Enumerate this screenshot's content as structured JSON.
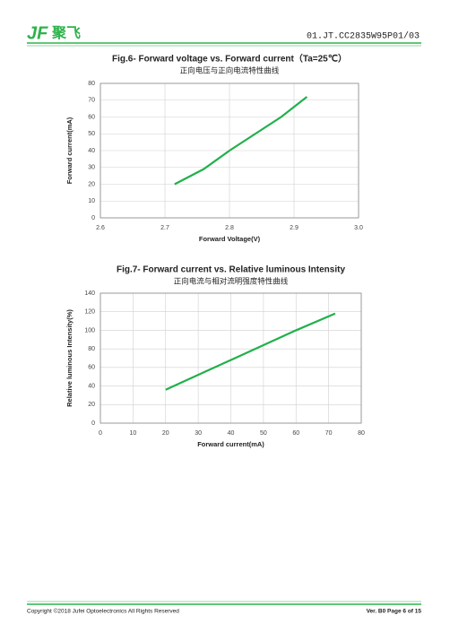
{
  "header": {
    "logo": "JF",
    "logo_cn": "聚飞",
    "doc_number": "01.JT.CC2835W95P01/03"
  },
  "footer": {
    "copyright": "Copyright ©2018 Jufei Optoelectronics All Rights Reserved",
    "page": "Ver. B0 Page 6 of 15"
  },
  "chart_data": [
    {
      "type": "line",
      "title": "Fig.6- Forward voltage vs. Forward current（Ta=25℃）",
      "subtitle": "正向电压与正向电流特性曲线",
      "x_label": "Forward Voltage(V)",
      "y_label": "Forward current(mA)",
      "x": [
        2.715,
        2.76,
        2.8,
        2.84,
        2.88,
        2.92
      ],
      "series": [
        {
          "color": "#22b04b",
          "values": [
            20,
            29,
            40,
            50,
            60,
            72
          ]
        }
      ],
      "xlim": [
        2.6,
        3.0
      ],
      "xticks": [
        2.6,
        2.7,
        2.8,
        2.9,
        {
          "value": 3.0,
          "label": "3.0"
        }
      ],
      "ylim": [
        0,
        80
      ],
      "yticks": [
        0,
        10,
        20,
        30,
        40,
        50,
        60,
        70,
        80
      ],
      "grid": true
    },
    {
      "type": "line",
      "title": "Fig.7- Forward current vs. Relative luminous Intensity",
      "subtitle": "正向电流与相对流明强度特性曲线",
      "x_label": "Forward current(mA)",
      "y_label": "Relative luminous Intensity(%)",
      "x": [
        20,
        30,
        40,
        50,
        60,
        72
      ],
      "series": [
        {
          "color": "#22b04b",
          "values": [
            36,
            52,
            68,
            84,
            100,
            118
          ]
        }
      ],
      "xlim": [
        0,
        80
      ],
      "xticks": [
        0,
        10,
        20,
        30,
        40,
        50,
        60,
        70,
        80
      ],
      "ylim": [
        0,
        140
      ],
      "yticks": [
        0,
        20,
        40,
        60,
        80,
        100,
        120,
        140
      ],
      "grid": true
    }
  ]
}
